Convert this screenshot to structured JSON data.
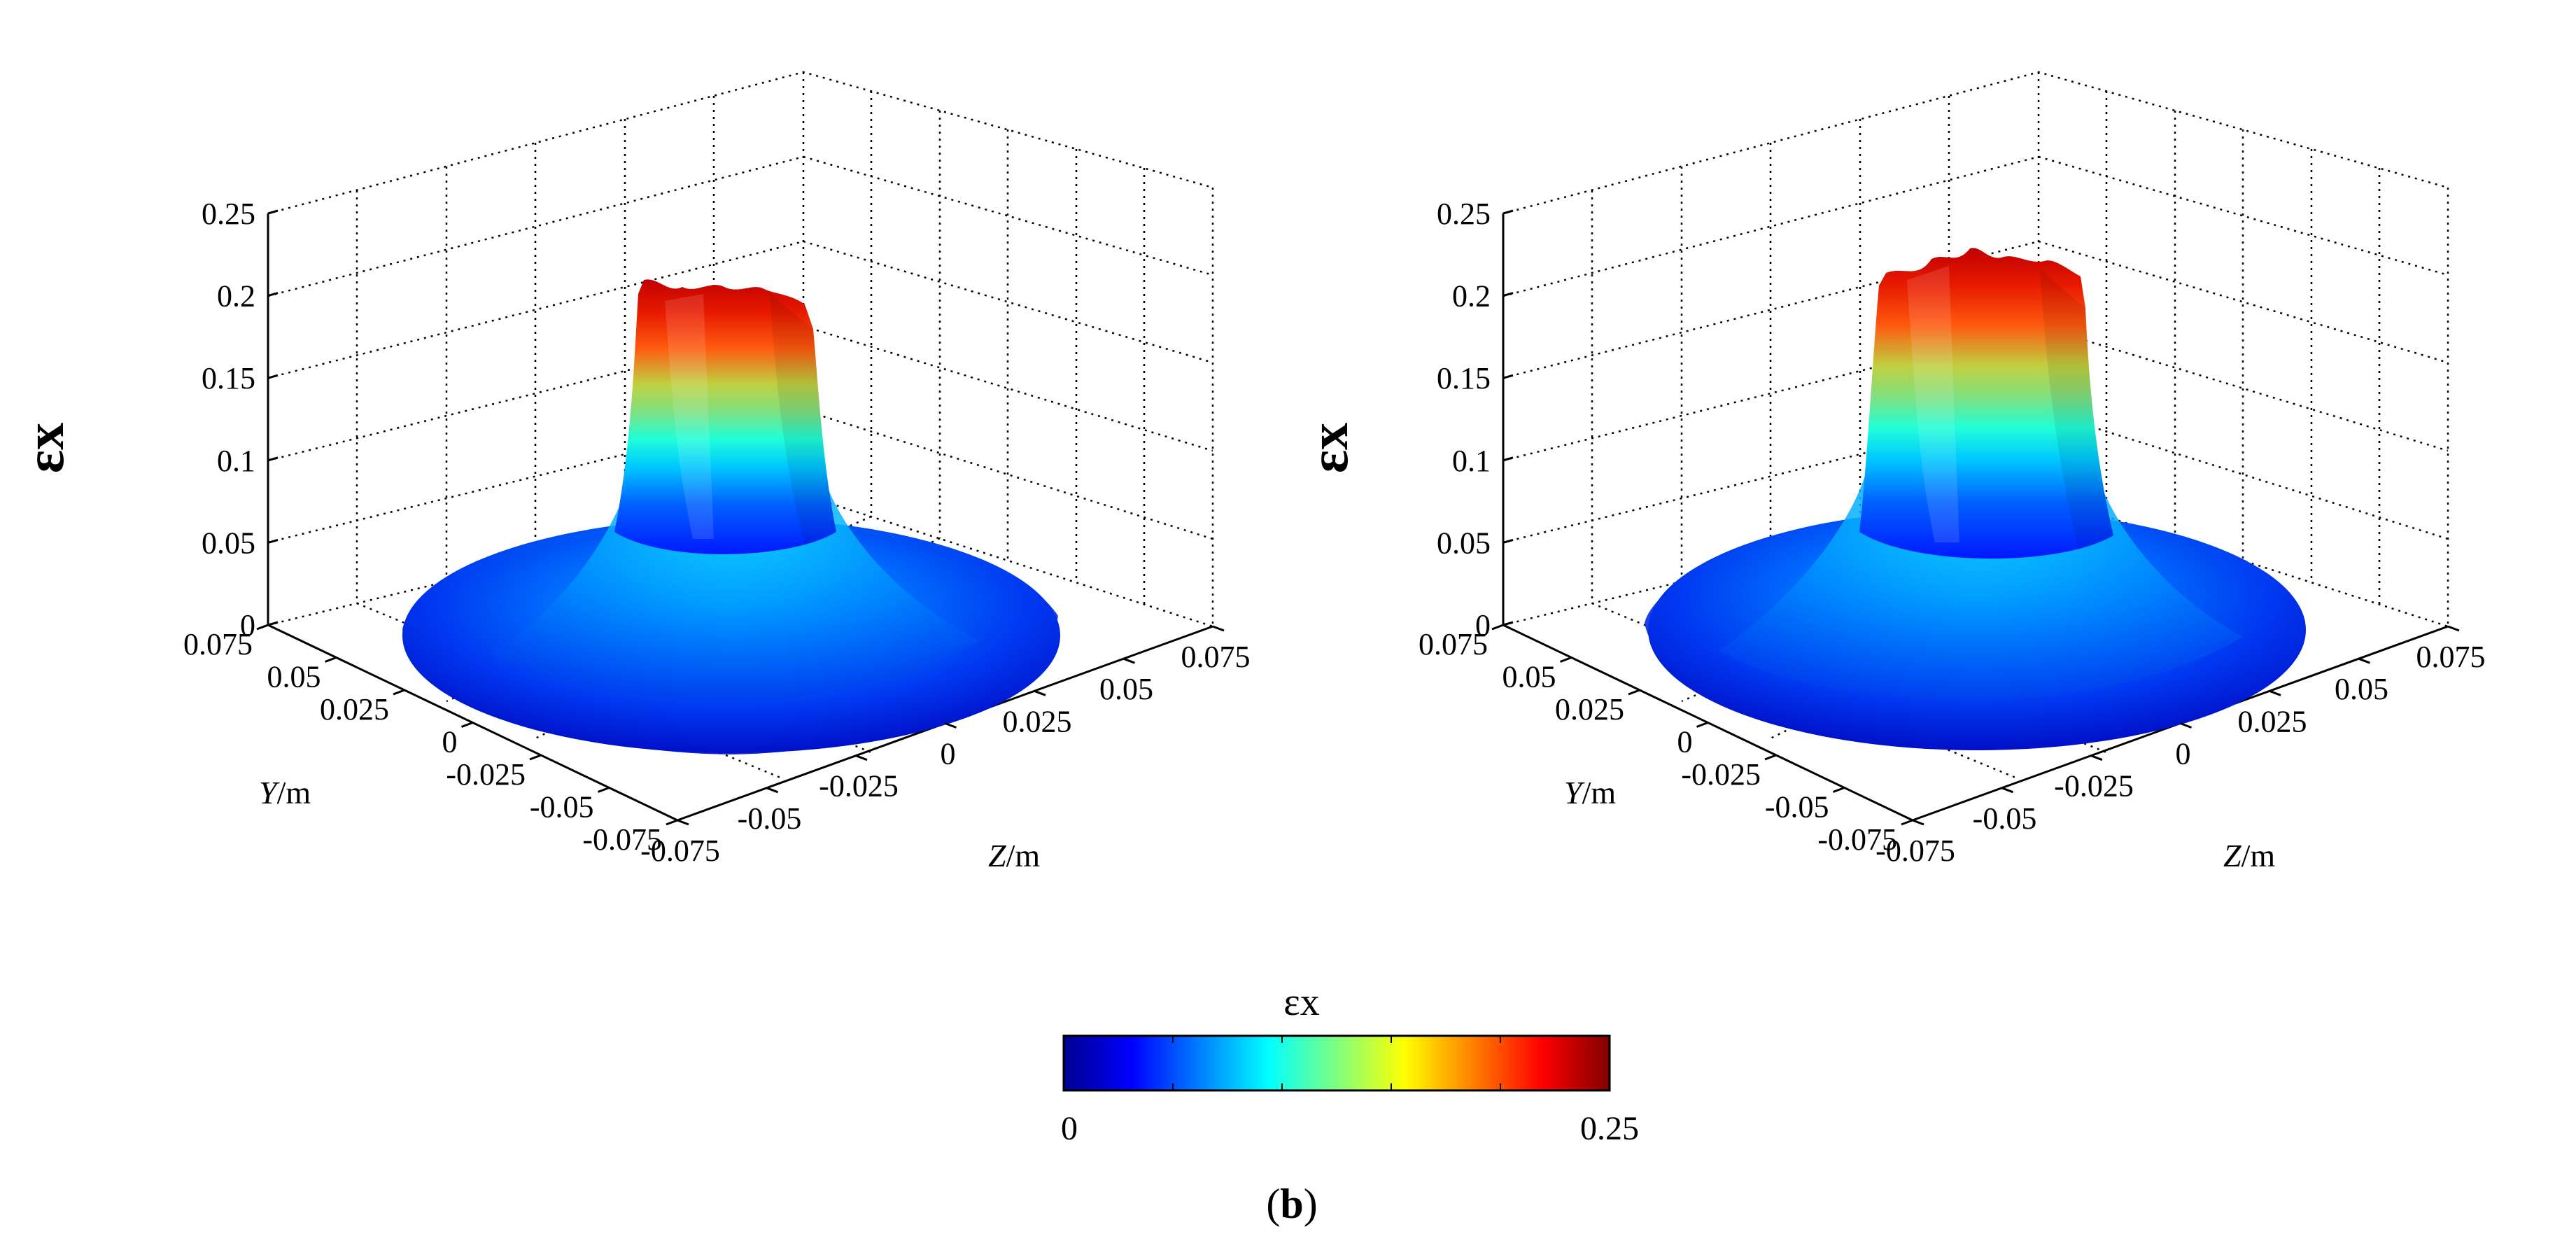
{
  "chart_data": [
    {
      "type": "surface3d",
      "panel": "left",
      "title": "",
      "xlabel_italic": "Z",
      "xlabel_unit": "/m",
      "ylabel_italic": "Y",
      "ylabel_unit": "/m",
      "zlabel": "εx",
      "xlim": [
        -0.075,
        0.075
      ],
      "ylim": [
        -0.075,
        0.075
      ],
      "zlim": [
        0,
        0.25
      ],
      "xticks": [
        "-0.075",
        "-0.05",
        "-0.025",
        "0",
        "0.025",
        "0.05",
        "0.075"
      ],
      "yticks": [
        "0.075",
        "0.05",
        "0.025",
        "0",
        "-0.025",
        "-0.05",
        "-0.075"
      ],
      "zticks": [
        "0",
        "0.05",
        "0.1",
        "0.15",
        "0.2",
        "0.25"
      ],
      "peak_value": 0.21,
      "base_radius": 0.075,
      "core_radius": 0.018
    },
    {
      "type": "surface3d",
      "panel": "right",
      "title": "",
      "xlabel_italic": "Z",
      "xlabel_unit": "/m",
      "ylabel_italic": "Y",
      "ylabel_unit": "/m",
      "zlabel": "εx",
      "xlim": [
        -0.075,
        0.075
      ],
      "ylim": [
        -0.075,
        0.075
      ],
      "zlim": [
        0,
        0.25
      ],
      "xticks": [
        "-0.075",
        "-0.05",
        "-0.025",
        "0",
        "0.025",
        "0.05",
        "0.075"
      ],
      "yticks": [
        "0.075",
        "0.05",
        "0.025",
        "0",
        "-0.025",
        "-0.05",
        "-0.075"
      ],
      "zticks": [
        "0",
        "0.05",
        "0.1",
        "0.15",
        "0.2",
        "0.25"
      ],
      "peak_value": 0.225,
      "base_radius": 0.075,
      "core_radius": 0.018
    }
  ],
  "colorbar": {
    "title": "εx",
    "min_label": "0",
    "max_label": "0.25",
    "colormap": "jet",
    "ticks": [
      0,
      0.05,
      0.1,
      0.15,
      0.2,
      0.25
    ]
  },
  "panel_label": {
    "open": "(",
    "letter": "b",
    "close": ")"
  },
  "colors": {
    "jet": [
      "#00008f",
      "#0000ff",
      "#0080ff",
      "#00ffff",
      "#80ff80",
      "#ffff00",
      "#ff8000",
      "#ff0000",
      "#800000"
    ]
  }
}
